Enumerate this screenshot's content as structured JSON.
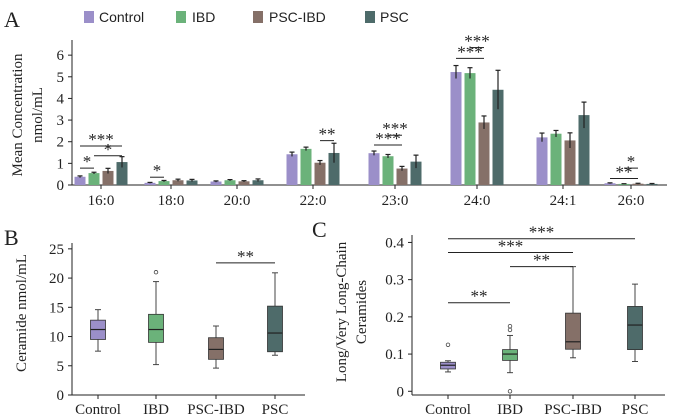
{
  "colors": {
    "Control": "#9b8fc9",
    "IBD": "#6bb27a",
    "PSC-IBD": "#857068",
    "PSC": "#4e6b6a"
  },
  "panel_letters": [
    "A",
    "B",
    "C"
  ],
  "legend": [
    "Control",
    "IBD",
    "PSC-IBD",
    "PSC"
  ],
  "chart_data": [
    {
      "id": "A",
      "type": "bar",
      "ylabel": [
        "Mean Concentration",
        "nmol/mL"
      ],
      "yticks": [
        0,
        1,
        2,
        3,
        4,
        5,
        6
      ],
      "ylim": [
        0,
        6.7
      ],
      "categories": [
        "16:0",
        "18:0",
        "20:0",
        "22:0",
        "23:0",
        "24:0",
        "24:1",
        "26:0"
      ],
      "series": [
        {
          "name": "Control",
          "values": [
            0.38,
            0.1,
            0.16,
            1.42,
            1.47,
            5.22,
            2.2,
            0.08
          ],
          "errors": [
            0.04,
            0.02,
            0.03,
            0.1,
            0.1,
            0.3,
            0.2,
            0.02
          ]
        },
        {
          "name": "IBD",
          "values": [
            0.55,
            0.18,
            0.22,
            1.67,
            1.33,
            5.17,
            2.37,
            0.05
          ],
          "errors": [
            0.04,
            0.03,
            0.03,
            0.08,
            0.08,
            0.25,
            0.15,
            0.01
          ]
        },
        {
          "name": "PSC-IBD",
          "values": [
            0.65,
            0.22,
            0.17,
            1.03,
            0.76,
            2.89,
            2.06,
            0.06
          ],
          "errors": [
            0.12,
            0.05,
            0.03,
            0.1,
            0.1,
            0.3,
            0.35,
            0.02
          ]
        },
        {
          "name": "PSC",
          "values": [
            1.06,
            0.21,
            0.22,
            1.48,
            1.08,
            4.4,
            3.23,
            0.05
          ],
          "errors": [
            0.25,
            0.05,
            0.06,
            0.45,
            0.3,
            0.9,
            0.6,
            0.02
          ]
        }
      ],
      "significance": [
        {
          "category": 0,
          "from": 0,
          "to": 1,
          "label": "*",
          "y": 0.78
        },
        {
          "category": 0,
          "from": 1,
          "to": 3,
          "label": "*",
          "y": 1.35
        },
        {
          "category": 0,
          "from": 0,
          "to": 3,
          "label": "***",
          "y": 1.8
        },
        {
          "category": 1,
          "from": 0,
          "to": 1,
          "label": "*",
          "y": 0.36
        },
        {
          "category": 3,
          "from": 2,
          "to": 3,
          "label": "**",
          "y": 2.05
        },
        {
          "category": 4,
          "from": 0,
          "to": 2,
          "label": "***",
          "y": 1.85
        },
        {
          "category": 4,
          "from": 1,
          "to": 2,
          "label": "***",
          "y": 2.3
        },
        {
          "category": 5,
          "from": 0,
          "to": 2,
          "label": "***",
          "y": 5.85
        },
        {
          "category": 5,
          "from": 1,
          "to": 2,
          "label": "***",
          "y": 6.35
        },
        {
          "category": 7,
          "from": 0,
          "to": 2,
          "label": "**",
          "y": 0.3
        },
        {
          "category": 7,
          "from": 1,
          "to": 2,
          "label": "*",
          "y": 0.78
        }
      ]
    },
    {
      "id": "B",
      "type": "box",
      "ylabel": "Ceramide nmol/mL",
      "yticks": [
        0,
        5,
        10,
        15,
        20,
        25
      ],
      "ylim": [
        0,
        26
      ],
      "categories": [
        "Control",
        "IBD",
        "PSC-IBD",
        "PSC"
      ],
      "boxes": [
        {
          "min": 7.5,
          "q1": 9.5,
          "median": 11.2,
          "q3": 12.8,
          "max": 14.6,
          "outliers": []
        },
        {
          "min": 5.2,
          "q1": 9.0,
          "median": 11.2,
          "q3": 13.8,
          "max": 19.4,
          "outliers": [
            21.0
          ]
        },
        {
          "min": 4.6,
          "q1": 6.1,
          "median": 7.8,
          "q3": 9.8,
          "max": 11.8,
          "outliers": []
        },
        {
          "min": 6.8,
          "q1": 7.4,
          "median": 10.6,
          "q3": 15.2,
          "max": 20.9,
          "outliers": []
        }
      ],
      "significance": [
        {
          "from": 2,
          "to": 3,
          "label": "**",
          "y": 22.6
        }
      ]
    },
    {
      "id": "C",
      "type": "box",
      "ylabel": [
        "Long/Very Long-Chain",
        "Ceramides"
      ],
      "yticks": [
        0,
        0.1,
        0.2,
        0.3,
        0.4
      ],
      "ytick_labels": [
        "0",
        "0.1",
        "0.2",
        "0.3",
        "0.4"
      ],
      "ylim": [
        -0.01,
        0.42
      ],
      "categories": [
        "Control",
        "IBD",
        "PSC-IBD",
        "PSC"
      ],
      "boxes": [
        {
          "min": 0.052,
          "q1": 0.06,
          "median": 0.07,
          "q3": 0.078,
          "max": 0.082,
          "outliers": [
            0.125
          ]
        },
        {
          "min": 0.05,
          "q1": 0.083,
          "median": 0.1,
          "q3": 0.112,
          "max": 0.15,
          "outliers": [
            0.165,
            0.175,
            0.0
          ]
        },
        {
          "min": 0.09,
          "q1": 0.113,
          "median": 0.133,
          "q3": 0.21,
          "max": 0.335,
          "outliers": []
        },
        {
          "min": 0.08,
          "q1": 0.112,
          "median": 0.178,
          "q3": 0.228,
          "max": 0.288,
          "outliers": []
        }
      ],
      "significance": [
        {
          "from": 0,
          "to": 1,
          "label": "**",
          "y": 0.238
        },
        {
          "from": 1,
          "to": 2,
          "label": "**",
          "y": 0.335
        },
        {
          "from": 0,
          "to": 2,
          "label": "***",
          "y": 0.373
        },
        {
          "from": 0,
          "to": 3,
          "label": "***",
          "y": 0.41
        }
      ]
    }
  ]
}
